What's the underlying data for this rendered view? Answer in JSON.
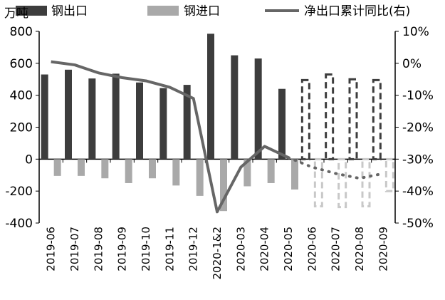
{
  "chart_data": {
    "type": "bar",
    "y_unit_label": "万吨",
    "legend": {
      "placement": "top",
      "entries": [
        {
          "label": "钢出口",
          "color": "#3d3d3d",
          "kind": "bar"
        },
        {
          "label": "钢进口",
          "color": "#a9a9a9",
          "kind": "bar"
        },
        {
          "label": "净出口累计同比(右)",
          "color": "#666666",
          "kind": "line"
        }
      ]
    },
    "categories": [
      "2019-06",
      "2019-07",
      "2019-08",
      "2019-09",
      "2019-10",
      "2019-11",
      "2019-12",
      "2020-1&2",
      "2020-03",
      "2020-04",
      "2020-05",
      "2020-06",
      "2020-07",
      "2020-08",
      "2020-09"
    ],
    "y_left": {
      "ylim": [
        -400,
        800
      ],
      "ticks": [
        "800",
        "600",
        "400",
        "200",
        "0",
        "-200",
        "-400"
      ],
      "tick_values": [
        800,
        600,
        400,
        200,
        0,
        -200,
        -400
      ]
    },
    "y_right": {
      "ylim": [
        -50,
        10
      ],
      "ticks": [
        "10%",
        "0%",
        "-10%",
        "-20%",
        "-30%",
        "-40%",
        "-50%"
      ],
      "tick_values": [
        10,
        0,
        -10,
        -20,
        -30,
        -40,
        -50
      ]
    },
    "series": [
      {
        "name": "钢出口",
        "axis": "left",
        "color": "#3d3d3d",
        "values": [
          530,
          560,
          505,
          535,
          480,
          445,
          465,
          785,
          650,
          630,
          440,
          null,
          null,
          null,
          null
        ]
      },
      {
        "name": "钢进口",
        "axis": "left",
        "color": "#a9a9a9",
        "values": [
          -105,
          -105,
          -120,
          -150,
          -120,
          -165,
          -230,
          -325,
          -170,
          -150,
          -190,
          null,
          null,
          null,
          null
        ]
      },
      {
        "name": "净出口累计同比(右)",
        "axis": "right",
        "color": "#666666",
        "values": [
          0.5,
          -0.5,
          -3,
          -4.5,
          -5.5,
          -7.5,
          -11,
          -46.5,
          -32.5,
          -26,
          -29.5,
          null,
          null,
          null,
          null
        ]
      }
    ],
    "forecast": {
      "export_values": [
        495,
        530,
        500,
        495
      ],
      "import_values": [
        -295,
        -300,
        -295,
        -200
      ],
      "ratio_values": [
        -32.5,
        -34.5,
        -36,
        -34.5
      ],
      "bar_style": "dashed-outline",
      "line_style": "dotted"
    },
    "grid": false
  }
}
